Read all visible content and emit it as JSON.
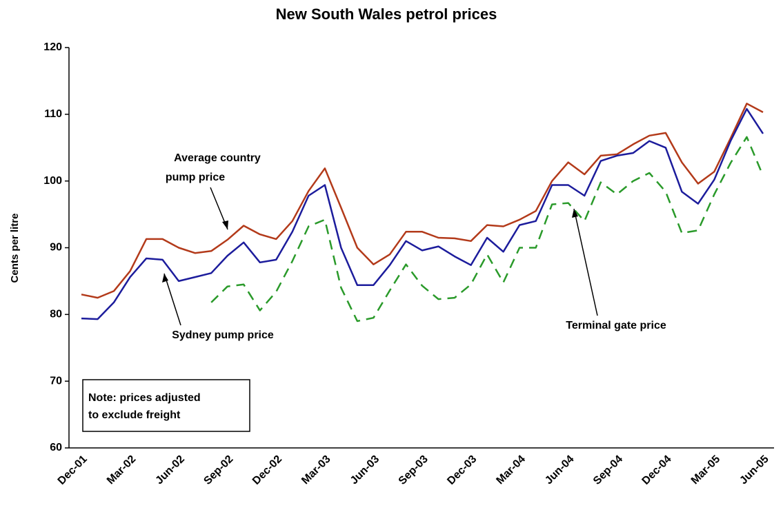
{
  "chart_data": {
    "type": "line",
    "title": "New South Wales petrol prices",
    "y_label": "Cents per litre",
    "categories": [
      "Dec-01",
      null,
      null,
      "Mar-02",
      null,
      null,
      "Jun-02",
      null,
      null,
      "Sep-02",
      null,
      null,
      "Dec-02",
      null,
      null,
      "Mar-03",
      null,
      null,
      "Jun-03",
      null,
      null,
      "Sep-03",
      null,
      null,
      "Dec-03",
      null,
      null,
      "Mar-04",
      null,
      null,
      "Jun-04",
      null,
      null,
      "Sep-04",
      null,
      null,
      "Dec-04",
      null,
      null,
      "Mar-05",
      null,
      null,
      "Jun-05"
    ],
    "series": [
      {
        "name": "Average country pump price",
        "color": "#b33a1a",
        "dash": false,
        "values": [
          83,
          82.5,
          83.5,
          86.5,
          91.3,
          91.3,
          90,
          89.2,
          89.5,
          91.2,
          93.3,
          92,
          91.3,
          94,
          98.5,
          101.9,
          96,
          90,
          87.5,
          89,
          92.4,
          92.4,
          91.5,
          91.4,
          91,
          93.4,
          93.2,
          94.2,
          95.5,
          100,
          102.8,
          101,
          103.8,
          104,
          105.5,
          106.8,
          107.2,
          102.8,
          99.6,
          101.4,
          106.4,
          111.6,
          110.3
        ]
      },
      {
        "name": "Sydney pump price",
        "color": "#1c1c9c",
        "dash": false,
        "values": [
          79.4,
          79.3,
          81.8,
          85.6,
          88.4,
          88.2,
          85,
          85.6,
          86.2,
          88.8,
          90.8,
          87.8,
          88.2,
          92.4,
          97.8,
          99.4,
          90,
          84.4,
          84.4,
          87.4,
          91,
          89.6,
          90.2,
          88.7,
          87.4,
          91.5,
          89.4,
          93.4,
          94,
          99.4,
          99.4,
          97.8,
          103,
          103.8,
          104.2,
          106,
          105,
          98.4,
          96.6,
          100.2,
          106,
          110.8,
          107.1
        ]
      },
      {
        "name": "Terminal gate price",
        "color": "#2a9a2a",
        "dash": true,
        "values": [
          null,
          null,
          null,
          null,
          null,
          null,
          null,
          null,
          81.8,
          84.2,
          84.5,
          80.6,
          83.4,
          88,
          93.2,
          94.2,
          84,
          79,
          79.5,
          83.6,
          87.5,
          84.3,
          82.3,
          82.5,
          84.5,
          89,
          84.8,
          90,
          90,
          96.5,
          96.7,
          94,
          99.8,
          98,
          100,
          101.2,
          98.4,
          92.2,
          92.6,
          98,
          102.7,
          106.6,
          100.8
        ]
      }
    ],
    "annotations": [
      {
        "lines": [
          "Average country",
          "pump price"
        ],
        "series": 0
      },
      {
        "lines": [
          "Sydney pump price"
        ],
        "series": 1
      },
      {
        "lines": [
          "Terminal gate price"
        ],
        "series": 2
      }
    ],
    "note": [
      "Note: prices adjusted",
      "to exclude freight"
    ],
    "ylim": [
      60,
      120
    ],
    "yticks": [
      60,
      70,
      80,
      90,
      100,
      110,
      120
    ]
  }
}
